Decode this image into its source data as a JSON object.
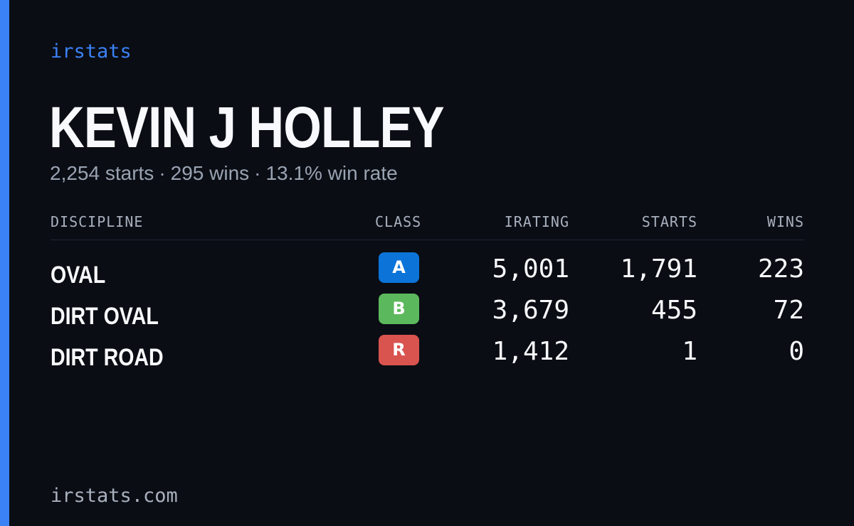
{
  "brand": "irstats",
  "accent_color": "#3b82f6",
  "player": {
    "name": "KEVIN J HOLLEY",
    "starts": "2,254 starts",
    "wins": "295 wins",
    "win_rate": "13.1% win rate",
    "separator": "·"
  },
  "table": {
    "headers": {
      "discipline": "DISCIPLINE",
      "class": "CLASS",
      "irating": "IRATING",
      "starts": "STARTS",
      "wins": "WINS"
    },
    "rows": [
      {
        "discipline": "OVAL",
        "class": "A",
        "class_color": "#0c74d9",
        "irating": "5,001",
        "starts": "1,791",
        "wins": "223"
      },
      {
        "discipline": "DIRT OVAL",
        "class": "B",
        "class_color": "#5cb85c",
        "irating": "3,679",
        "starts": "455",
        "wins": "72"
      },
      {
        "discipline": "DIRT ROAD",
        "class": "R",
        "class_color": "#d9534f",
        "irating": "1,412",
        "starts": "1",
        "wins": "0"
      }
    ]
  },
  "footer": "irstats.com"
}
